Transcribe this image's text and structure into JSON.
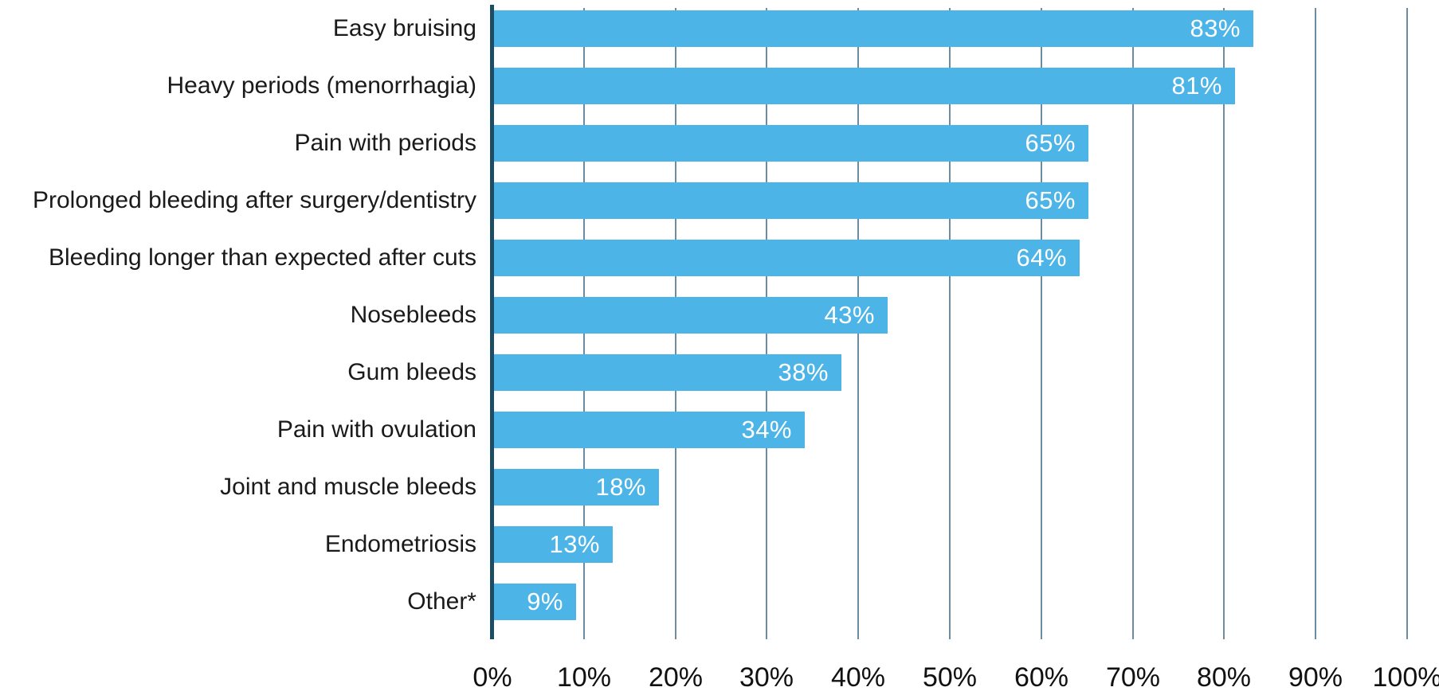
{
  "chart_data": {
    "type": "bar",
    "orientation": "horizontal",
    "title": "",
    "xlabel": "",
    "ylabel": "",
    "categories": [
      "Easy bruising",
      "Heavy periods (menorrhagia)",
      "Pain with periods",
      "Prolonged bleeding after surgery/dentistry",
      "Bleeding longer than expected after cuts",
      "Nosebleeds",
      "Gum bleeds",
      "Pain with ovulation",
      "Joint and muscle bleeds",
      "Endometriosis",
      "Other*"
    ],
    "values": [
      83,
      81,
      65,
      65,
      64,
      43,
      38,
      34,
      18,
      13,
      9
    ],
    "value_labels": [
      "83%",
      "81%",
      "65%",
      "65%",
      "64%",
      "43%",
      "38%",
      "34%",
      "18%",
      "13%",
      "9%"
    ],
    "x_ticks": [
      "0%",
      "10%",
      "20%",
      "30%",
      "40%",
      "50%",
      "60%",
      "70%",
      "80%",
      "90%",
      "100%"
    ],
    "x_tick_values": [
      0,
      10,
      20,
      30,
      40,
      50,
      60,
      70,
      80,
      90,
      100
    ],
    "xlim": [
      0,
      100
    ],
    "grid": true,
    "legend": false,
    "colors": {
      "bar": "#4DB4E7",
      "axis_line": "#1D4D64",
      "gridline": "#6B8CA1",
      "category_text": "#1A1A1A",
      "tick_text": "#111111",
      "value_text": "#FFFFFF"
    }
  }
}
